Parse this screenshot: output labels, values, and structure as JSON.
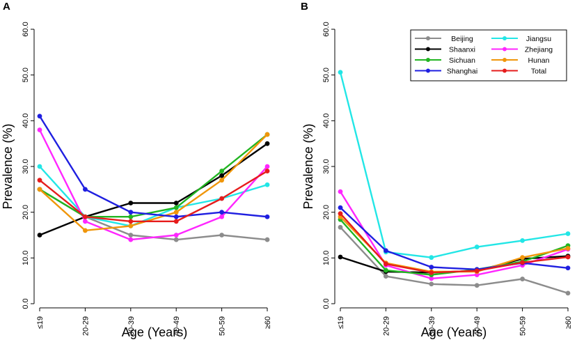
{
  "chart_data": [
    {
      "panel": "A",
      "type": "line",
      "xlabel": "Age (Years)",
      "ylabel": "Prevalence (%)",
      "ylim": [
        0,
        60
      ],
      "yticks": [
        "0.0",
        "10.0",
        "20.0",
        "30.0",
        "40.0",
        "50.0",
        "60.0"
      ],
      "categories": [
        "≤19",
        "20-29",
        "30-39",
        "40-49",
        "50-59",
        "≥60"
      ],
      "series": [
        {
          "name": "Beijing",
          "color": "#8c8c8c",
          "values": [
            25,
            19,
            15,
            14,
            15,
            14
          ]
        },
        {
          "name": "Jiangsu",
          "color": "#22e6e6",
          "values": [
            30,
            19,
            17,
            21,
            23,
            26
          ]
        },
        {
          "name": "Shaanxi",
          "color": "#000000",
          "values": [
            15,
            19,
            22,
            22,
            28,
            35
          ]
        },
        {
          "name": "Zhejiang",
          "color": "#ff26ff",
          "values": [
            38,
            18,
            14,
            15,
            19,
            30
          ]
        },
        {
          "name": "Sichuan",
          "color": "#22b522",
          "values": [
            25,
            19,
            19,
            21,
            29,
            37
          ]
        },
        {
          "name": "Hunan",
          "color": "#f0960a",
          "values": [
            25,
            16,
            17,
            20,
            27,
            37
          ]
        },
        {
          "name": "Shanghai",
          "color": "#1f1fe0",
          "values": [
            41,
            25,
            20,
            19,
            20,
            19
          ]
        },
        {
          "name": "Total",
          "color": "#e61c1c",
          "values": [
            27,
            19,
            18,
            18,
            23,
            29
          ]
        }
      ]
    },
    {
      "panel": "B",
      "type": "line",
      "xlabel": "Age (Years)",
      "ylabel": "Prevalence (%)",
      "ylim": [
        0,
        60
      ],
      "yticks": [
        "0.0",
        "10.0",
        "20.0",
        "30.0",
        "40.0",
        "50.0",
        "60.0"
      ],
      "categories": [
        "≤19",
        "20-29",
        "30-39",
        "40-49",
        "50-59",
        "≥60"
      ],
      "legend": {
        "position": "top-right",
        "entries": [
          "Beijing",
          "Jiangsu",
          "Shaanxi",
          "Zhejiang",
          "Sichuan",
          "Hunan",
          "Shanghai",
          "Total"
        ]
      },
      "series": [
        {
          "name": "Beijing",
          "color": "#8c8c8c",
          "values": [
            16.7,
            6.0,
            4.3,
            4.0,
            5.4,
            2.3
          ]
        },
        {
          "name": "Jiangsu",
          "color": "#22e6e6",
          "values": [
            50.6,
            11.3,
            10.1,
            12.4,
            13.8,
            15.3
          ]
        },
        {
          "name": "Shaanxi",
          "color": "#000000",
          "values": [
            10.2,
            7.0,
            6.8,
            7.2,
            9.8,
            10.4
          ]
        },
        {
          "name": "Zhejiang",
          "color": "#ff26ff",
          "values": [
            24.5,
            8.4,
            5.5,
            6.3,
            8.4,
            11.9
          ]
        },
        {
          "name": "Sichuan",
          "color": "#22b522",
          "values": [
            18.4,
            7.3,
            6.3,
            7.5,
            9.2,
            12.7
          ]
        },
        {
          "name": "Hunan",
          "color": "#f0960a",
          "values": [
            19.0,
            8.9,
            7.0,
            7.0,
            10.1,
            12.1
          ]
        },
        {
          "name": "Shanghai",
          "color": "#1f1fe0",
          "values": [
            21.0,
            11.6,
            8.0,
            7.5,
            8.9,
            7.8
          ]
        },
        {
          "name": "Total",
          "color": "#e61c1c",
          "values": [
            19.7,
            8.7,
            6.8,
            7.2,
            9.0,
            10.2
          ]
        }
      ]
    }
  ]
}
